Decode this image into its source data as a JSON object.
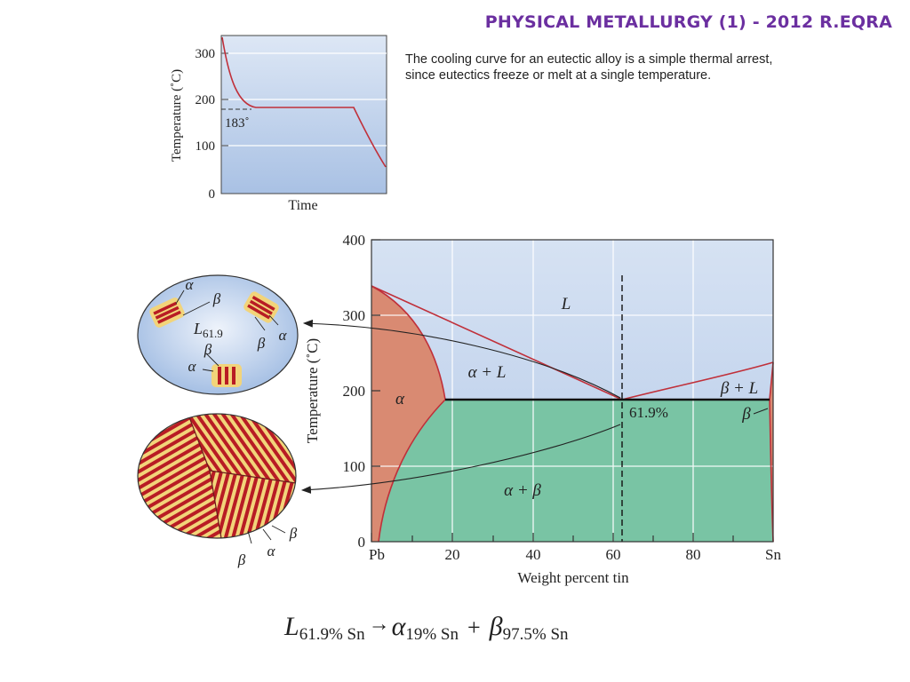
{
  "slide": {
    "header": "PHYSICAL METALLURGY (1) - 2012 R.EQRA",
    "caption": "The cooling curve for an eutectic alloy is a simple thermal arrest, since eutectics freeze or melt at a single temperature."
  },
  "cooling_curve": {
    "ylabel": "Temperature (˚C)",
    "xlabel": "Time",
    "yticks": [
      "0",
      "100",
      "200",
      "300"
    ],
    "arrest_label": "183˚"
  },
  "phase_diagram": {
    "ylabel": "Temperature (˚C)",
    "xlabel": "Weight percent tin",
    "yticks": [
      "0",
      "100",
      "200",
      "300",
      "400"
    ],
    "xticks": [
      "Pb",
      "20",
      "40",
      "60",
      "80",
      "Sn"
    ],
    "regions": {
      "liquid": "L",
      "alpha": "α",
      "alpha_liquid": "α + L",
      "beta_liquid": "β + L",
      "beta": "β",
      "alpha_beta": "α + β"
    },
    "eutectic_label": "61.9%"
  },
  "microstructure": {
    "alpha": "α",
    "beta": "β",
    "liquid_main": "L",
    "liquid_sub": "61.9"
  },
  "reaction": {
    "L": "L",
    "L_sub": "61.9% Sn",
    "arrow": "→",
    "alpha": "α",
    "alpha_sub": "19% Sn",
    "plus": "+",
    "beta": "β",
    "beta_sub": "97.5% Sn"
  },
  "colors": {
    "header": "#6b2fa0",
    "liquid_region": "#cddcf0",
    "alpha_region": "#d98a72",
    "two_phase_region": "#79c4a4",
    "curve": "#c0303a",
    "stripe_red": "#b81c24",
    "stripe_yellow": "#f2d47a"
  }
}
